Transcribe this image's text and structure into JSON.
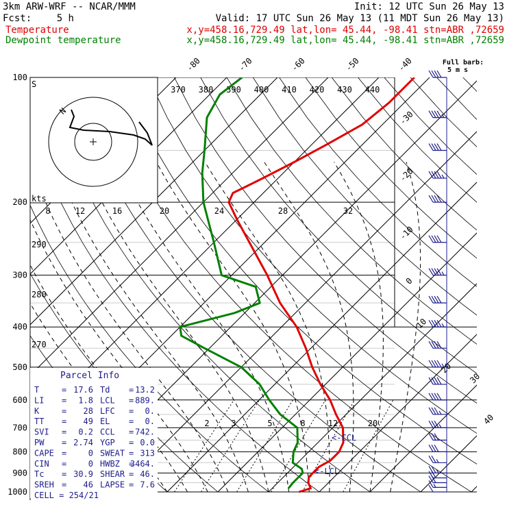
{
  "header": {
    "model": "3km ARW-WRF -- NCAR/MMM",
    "init": "Init: 12 UTC Sun 26 May 13",
    "fcst_label": "Fcst:",
    "fcst_value": "5 h",
    "valid": "Valid: 17 UTC Sun 26 May 13 (11 MDT Sun 26 May 13)",
    "temp_label": "Temperature",
    "temp_info": "x,y=458.16,729.49   lat,lon= 45.44, -98.41   stn=ABR ,72659",
    "dew_label": "Dewpoint temperature",
    "dew_info": "x,y=458.16,729.49   lat,lon= 45.44, -98.41   stn=ABR ,72659",
    "barb_legend_1": "Full barb:",
    "barb_legend_2": "5 m s",
    "ccl_marker": "<-CCL",
    "lcl_marker": "<-LCL"
  },
  "colors": {
    "temperature": "#e00000",
    "dewpoint": "#008000",
    "parcel_text": "#1c1c8c",
    "wind": "#1c1c8c"
  },
  "hodograph": {
    "label_n": "N",
    "label_s": "S",
    "speed_label": "kts",
    "speeds": [
      "8",
      "12",
      "16",
      "20",
      "24",
      "28",
      "32"
    ]
  },
  "parcel_info": {
    "title": "Parcel Info",
    "rows": [
      {
        "l1": "T",
        "v1": "17.6",
        "l2": "Td",
        "v2": "13.2"
      },
      {
        "l1": "LI",
        "v1": "1.8",
        "l2": "LCL",
        "v2": "889."
      },
      {
        "l1": "K",
        "v1": "28",
        "l2": "LFC",
        "v2": "0."
      },
      {
        "l1": "TT",
        "v1": "49",
        "l2": "EL",
        "v2": "0."
      },
      {
        "l1": "SVI",
        "v1": "0.2",
        "l2": "CCL",
        "v2": "742."
      },
      {
        "l1": "PW",
        "v1": "2.74",
        "l2": "YGP",
        "v2": "0.0"
      },
      {
        "l1": "CAPE",
        "v1": "0",
        "l2": "SWEAT",
        "v2": "313"
      },
      {
        "l1": "CIN",
        "v1": "0",
        "l2": "HWBZ",
        "v2": "3464."
      },
      {
        "l1": "Tc",
        "v1": "30.9",
        "l2": "SHEAR",
        "v2": "46."
      },
      {
        "l1": "SREH",
        "v1": "46",
        "l2": "LAPSE",
        "v2": "7.6"
      }
    ],
    "cell_label": "CELL",
    "cell_value": "254/21"
  },
  "chart_data": {
    "type": "line",
    "title": "",
    "ylabel": "",
    "xlabel": "",
    "y_scale": "log-pressure (hPa)",
    "y_ticks": [
      "100",
      "200",
      "300",
      "400",
      "500",
      "600",
      "700",
      "800",
      "900",
      "1000"
    ],
    "isotherm_labels": [
      "-80",
      "-70",
      "-60",
      "-50",
      "-40",
      "-30",
      "-20",
      "-10",
      "0",
      "10",
      "20",
      "30",
      "40"
    ],
    "theta_labels": [
      "370",
      "380",
      "390",
      "400",
      "410",
      "420",
      "430",
      "440"
    ],
    "theta_left_labels": [
      "290",
      "280",
      "270"
    ],
    "mixing_ratio_labels": [
      "2",
      "3",
      "5",
      "8",
      "12",
      "20"
    ],
    "series": [
      {
        "color": "#e00000",
        "points": [
          [
            1000,
            16
          ],
          [
            980,
            17.6
          ],
          [
            950,
            16
          ],
          [
            920,
            15
          ],
          [
            900,
            15
          ],
          [
            870,
            15
          ],
          [
            840,
            16
          ],
          [
            800,
            16
          ],
          [
            760,
            15
          ],
          [
            700,
            12
          ],
          [
            650,
            8
          ],
          [
            600,
            4
          ],
          [
            550,
            -1
          ],
          [
            500,
            -6
          ],
          [
            450,
            -11
          ],
          [
            400,
            -17
          ],
          [
            350,
            -25
          ],
          [
            300,
            -33
          ],
          [
            250,
            -43
          ],
          [
            220,
            -50
          ],
          [
            200,
            -55
          ],
          [
            190,
            -56
          ],
          [
            185,
            -55
          ],
          [
            175,
            -53
          ],
          [
            160,
            -50
          ],
          [
            145,
            -47
          ],
          [
            130,
            -44
          ],
          [
            115,
            -43
          ],
          [
            100,
            -43
          ]
        ]
      },
      {
        "color": "#008000",
        "points": [
          [
            980,
            13.2
          ],
          [
            950,
            13
          ],
          [
            900,
            13
          ],
          [
            880,
            12
          ],
          [
            850,
            9
          ],
          [
            800,
            7
          ],
          [
            760,
            6
          ],
          [
            700,
            3
          ],
          [
            650,
            -3
          ],
          [
            600,
            -8
          ],
          [
            550,
            -13
          ],
          [
            500,
            -20
          ],
          [
            450,
            -31
          ],
          [
            420,
            -38
          ],
          [
            400,
            -40
          ],
          [
            370,
            -32
          ],
          [
            350,
            -29
          ],
          [
            320,
            -33
          ],
          [
            300,
            -42
          ],
          [
            250,
            -50
          ],
          [
            200,
            -60
          ],
          [
            170,
            -66
          ],
          [
            150,
            -70
          ],
          [
            125,
            -76
          ],
          [
            110,
            -78
          ],
          [
            100,
            -77
          ]
        ]
      }
    ],
    "wind_profile": [
      {
        "p": 1000,
        "dir": 200,
        "kts": 10
      },
      {
        "p": 975,
        "dir": 205,
        "kts": 15
      },
      {
        "p": 950,
        "dir": 210,
        "kts": 20
      },
      {
        "p": 925,
        "dir": 215,
        "kts": 20
      },
      {
        "p": 900,
        "dir": 225,
        "kts": 25
      },
      {
        "p": 850,
        "dir": 240,
        "kts": 25
      },
      {
        "p": 800,
        "dir": 250,
        "kts": 30
      },
      {
        "p": 750,
        "dir": 250,
        "kts": 30
      },
      {
        "p": 700,
        "dir": 255,
        "kts": 35
      },
      {
        "p": 650,
        "dir": 255,
        "kts": 35
      },
      {
        "p": 600,
        "dir": 260,
        "kts": 40
      },
      {
        "p": 550,
        "dir": 260,
        "kts": 40
      },
      {
        "p": 500,
        "dir": 260,
        "kts": 45
      },
      {
        "p": 450,
        "dir": 260,
        "kts": 50
      },
      {
        "p": 400,
        "dir": 260,
        "kts": 55
      },
      {
        "p": 350,
        "dir": 260,
        "kts": 60
      },
      {
        "p": 300,
        "dir": 260,
        "kts": 65
      },
      {
        "p": 250,
        "dir": 260,
        "kts": 70
      },
      {
        "p": 200,
        "dir": 260,
        "kts": 70
      },
      {
        "p": 175,
        "dir": 255,
        "kts": 65
      },
      {
        "p": 150,
        "dir": 255,
        "kts": 60
      },
      {
        "p": 125,
        "dir": 250,
        "kts": 55
      },
      {
        "p": 100,
        "dir": 250,
        "kts": 50
      }
    ]
  }
}
